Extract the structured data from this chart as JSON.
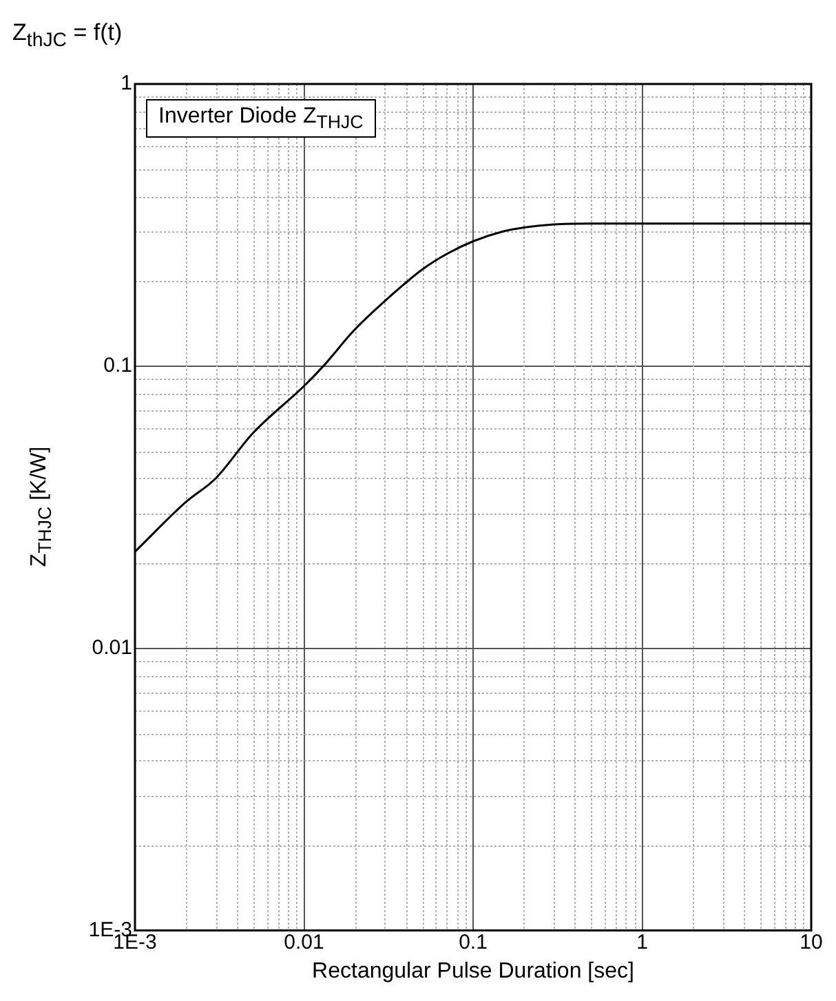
{
  "chart_data": {
    "type": "line",
    "title": "Z$_{thJC}$ = f(t)",
    "xlabel": "Rectangular Pulse Duration [sec]",
    "ylabel": "Z$_{THJC}$ [K/W]",
    "annotations": [
      "Inverter Diode Z$_{THJC}$"
    ],
    "x": [
      0.001,
      0.002,
      0.003,
      0.005,
      0.01,
      0.013,
      0.02,
      0.03,
      0.05,
      0.07,
      0.1,
      0.15,
      0.2,
      0.3,
      0.5,
      1,
      10
    ],
    "series": [
      {
        "color": "#000000",
        "values": [
          0.022,
          0.033,
          0.04,
          0.058,
          0.085,
          0.1,
          0.135,
          0.17,
          0.22,
          0.25,
          0.277,
          0.3,
          0.31,
          0.318,
          0.32,
          0.32,
          0.32
        ]
      }
    ],
    "log": "xy",
    "xlim": [
      0.001,
      10
    ],
    "ylim": [
      0.001,
      1
    ],
    "xticks": [
      {
        "value": 0.001,
        "label": "1E-3"
      },
      0.01,
      0.1,
      1,
      10
    ],
    "yticks": [
      {
        "value": 0.001,
        "label": "1E-3"
      },
      0.01,
      0.1,
      1
    ],
    "grid": true,
    "legend": false,
    "marker": "none",
    "line_style": "solid"
  }
}
